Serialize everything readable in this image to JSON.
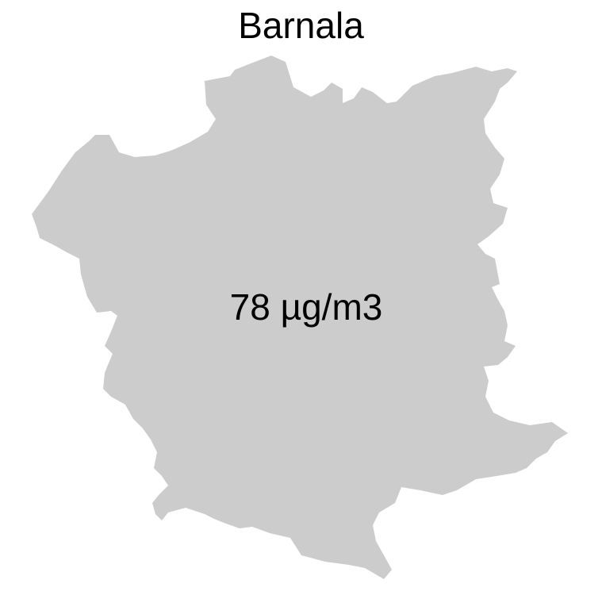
{
  "map": {
    "title": "Barnala",
    "region_label": "78 µg/m3",
    "fill_color": "#cccccc",
    "background_color": "#ffffff"
  }
}
